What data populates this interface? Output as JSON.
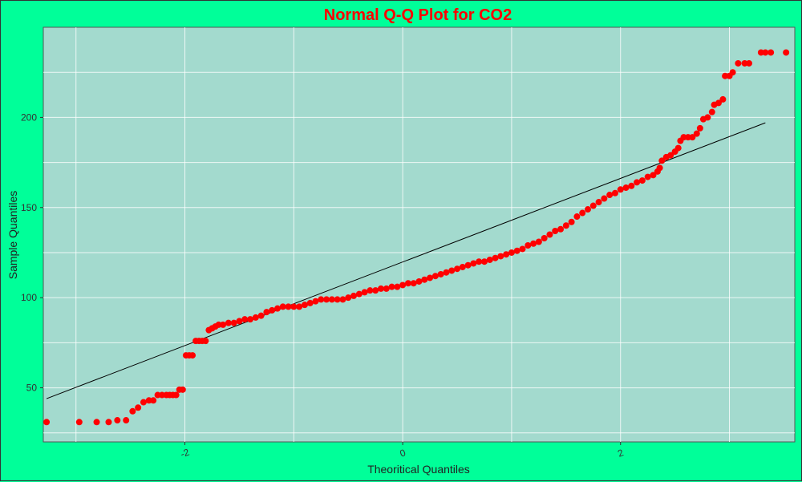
{
  "chart_data": {
    "type": "scatter",
    "title": "Normal Q-Q Plot for CO2",
    "xlabel": "Theoritical Quantiles",
    "ylabel": "Sample Quantiles",
    "xlim": [
      -3.3,
      3.6
    ],
    "ylim": [
      20,
      250
    ],
    "x_ticks": [
      -2,
      0,
      2
    ],
    "y_ticks": [
      50,
      100,
      150,
      200
    ],
    "grid": true,
    "colors": {
      "points": "#ff0000",
      "panel": "#a3dace",
      "background": "#00ff99",
      "line": "#000000",
      "title": "#ff0000"
    },
    "reference_line": {
      "x": [
        -3.27,
        3.33
      ],
      "y": [
        44,
        197
      ]
    },
    "series": [
      {
        "points": [
          [
            -3.27,
            31
          ],
          [
            -2.97,
            31
          ],
          [
            -2.81,
            31
          ],
          [
            -2.7,
            31
          ],
          [
            -2.62,
            32
          ],
          [
            -2.54,
            32
          ],
          [
            -2.48,
            37
          ],
          [
            -2.43,
            39
          ],
          [
            -2.38,
            42
          ],
          [
            -2.33,
            43
          ],
          [
            -2.29,
            43
          ],
          [
            -2.25,
            46
          ],
          [
            -2.21,
            46
          ],
          [
            -2.17,
            46
          ],
          [
            -2.14,
            46
          ],
          [
            -2.11,
            46
          ],
          [
            -2.08,
            46
          ],
          [
            -2.05,
            49
          ],
          [
            -2.02,
            49
          ],
          [
            -1.99,
            68
          ],
          [
            -1.96,
            68
          ],
          [
            -1.93,
            68
          ],
          [
            -1.9,
            76
          ],
          [
            -1.87,
            76
          ],
          [
            -1.84,
            76
          ],
          [
            -1.81,
            76
          ],
          [
            -1.78,
            82
          ],
          [
            -1.75,
            83
          ],
          [
            -1.72,
            84
          ],
          [
            -1.69,
            85
          ],
          [
            -1.65,
            85
          ],
          [
            -1.6,
            86
          ],
          [
            -1.55,
            86
          ],
          [
            -1.5,
            87
          ],
          [
            -1.45,
            88
          ],
          [
            -1.4,
            88
          ],
          [
            -1.35,
            89
          ],
          [
            -1.3,
            90
          ],
          [
            -1.25,
            92
          ],
          [
            -1.2,
            93
          ],
          [
            -1.15,
            94
          ],
          [
            -1.1,
            95
          ],
          [
            -1.05,
            95
          ],
          [
            -1.0,
            95
          ],
          [
            -0.95,
            95
          ],
          [
            -0.9,
            96
          ],
          [
            -0.85,
            97
          ],
          [
            -0.8,
            98
          ],
          [
            -0.75,
            99
          ],
          [
            -0.7,
            99
          ],
          [
            -0.65,
            99
          ],
          [
            -0.6,
            99
          ],
          [
            -0.55,
            99
          ],
          [
            -0.5,
            100
          ],
          [
            -0.45,
            101
          ],
          [
            -0.4,
            102
          ],
          [
            -0.35,
            103
          ],
          [
            -0.3,
            104
          ],
          [
            -0.25,
            104
          ],
          [
            -0.2,
            105
          ],
          [
            -0.15,
            105
          ],
          [
            -0.1,
            106
          ],
          [
            -0.05,
            106
          ],
          [
            0.0,
            107
          ],
          [
            0.05,
            108
          ],
          [
            0.1,
            108
          ],
          [
            0.15,
            109
          ],
          [
            0.2,
            110
          ],
          [
            0.25,
            111
          ],
          [
            0.3,
            112
          ],
          [
            0.35,
            113
          ],
          [
            0.4,
            114
          ],
          [
            0.45,
            115
          ],
          [
            0.5,
            116
          ],
          [
            0.55,
            117
          ],
          [
            0.6,
            118
          ],
          [
            0.65,
            119
          ],
          [
            0.7,
            120
          ],
          [
            0.75,
            120
          ],
          [
            0.8,
            121
          ],
          [
            0.85,
            122
          ],
          [
            0.9,
            123
          ],
          [
            0.95,
            124
          ],
          [
            1.0,
            125
          ],
          [
            1.05,
            126
          ],
          [
            1.1,
            127
          ],
          [
            1.15,
            129
          ],
          [
            1.2,
            130
          ],
          [
            1.25,
            131
          ],
          [
            1.3,
            133
          ],
          [
            1.35,
            135
          ],
          [
            1.4,
            137
          ],
          [
            1.45,
            138
          ],
          [
            1.5,
            140
          ],
          [
            1.55,
            142
          ],
          [
            1.6,
            145
          ],
          [
            1.65,
            147
          ],
          [
            1.7,
            149
          ],
          [
            1.75,
            151
          ],
          [
            1.8,
            153
          ],
          [
            1.85,
            155
          ],
          [
            1.9,
            157
          ],
          [
            1.95,
            158
          ],
          [
            2.0,
            160
          ],
          [
            2.05,
            161
          ],
          [
            2.1,
            162
          ],
          [
            2.15,
            164
          ],
          [
            2.2,
            165
          ],
          [
            2.25,
            167
          ],
          [
            2.3,
            168
          ],
          [
            2.34,
            170
          ],
          [
            2.36,
            172
          ],
          [
            2.38,
            176
          ],
          [
            2.42,
            178
          ],
          [
            2.46,
            179
          ],
          [
            2.5,
            181
          ],
          [
            2.53,
            183
          ],
          [
            2.55,
            187
          ],
          [
            2.58,
            189
          ],
          [
            2.62,
            189
          ],
          [
            2.66,
            189
          ],
          [
            2.7,
            191
          ],
          [
            2.73,
            194
          ],
          [
            2.76,
            199
          ],
          [
            2.8,
            200
          ],
          [
            2.84,
            203
          ],
          [
            2.86,
            207
          ],
          [
            2.9,
            208
          ],
          [
            2.94,
            210
          ],
          [
            2.96,
            223
          ],
          [
            3.0,
            223
          ],
          [
            3.03,
            225
          ],
          [
            3.08,
            230
          ],
          [
            3.14,
            230
          ],
          [
            3.18,
            230
          ],
          [
            3.29,
            236
          ],
          [
            3.38,
            236
          ],
          [
            3.52,
            236
          ],
          [
            3.33,
            236
          ]
        ]
      }
    ]
  }
}
